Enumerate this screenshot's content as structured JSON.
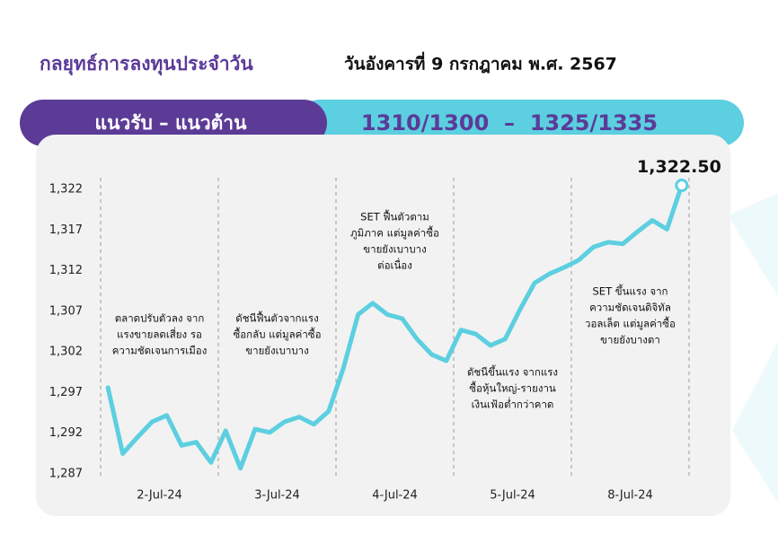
{
  "header": {
    "title": "กลยุทธ์การลงทุนประจำวัน",
    "date": "วันอังคารที่ 9 กรกฎาคม พ.ศ. 2567"
  },
  "range_bar": {
    "label": "แนวรับ – แนวต้าน",
    "value": "1310/1300  –  1325/1335"
  },
  "chart_data": {
    "type": "line",
    "days": [
      "2-Jul-24",
      "3-Jul-24",
      "4-Jul-24",
      "5-Jul-24",
      "8-Jul-24"
    ],
    "values": [
      1297.6,
      1289.5,
      1291.5,
      1293.4,
      1294.2,
      1290.5,
      1290.9,
      1288.4,
      1292.3,
      1287.7,
      1292.5,
      1292.1,
      1293.4,
      1294.0,
      1293.1,
      1294.7,
      1300.0,
      1306.6,
      1308.0,
      1306.6,
      1306.1,
      1303.6,
      1301.7,
      1300.9,
      1304.7,
      1304.2,
      1302.8,
      1303.6,
      1307.2,
      1310.5,
      1311.6,
      1312.4,
      1313.3,
      1314.9,
      1315.5,
      1315.3,
      1316.8,
      1318.2,
      1317.1,
      1322.5
    ],
    "value_labels": [
      null,
      null,
      null,
      null,
      null,
      null,
      null,
      null,
      null,
      null,
      null,
      null,
      null,
      null,
      null,
      null,
      null,
      null,
      null,
      null,
      null,
      null,
      null,
      null,
      null,
      null,
      null,
      null,
      null,
      null,
      null,
      null,
      null,
      null,
      null,
      null,
      null,
      null,
      null,
      "1,322.50"
    ],
    "color": "#5ccfe0",
    "ylim": [
      1287,
      1323
    ],
    "yticks": [
      {
        "value": 1287,
        "label": "1,287"
      },
      {
        "value": 1292,
        "label": "1,292"
      },
      {
        "value": 1297,
        "label": "1,297"
      },
      {
        "value": 1302,
        "label": "1,302"
      },
      {
        "value": 1307,
        "label": "1,307"
      },
      {
        "value": 1312,
        "label": "1,312"
      },
      {
        "value": 1317,
        "label": "1,317"
      },
      {
        "value": 1322,
        "label": "1,322"
      }
    ],
    "annotations": [
      [
        "ตลาดปรับตัวลง จาก",
        "แรงขายลดเสี่ยง รอ",
        "ความชัดเจนการเมือง"
      ],
      [
        "ดัชนีฟื้นตัวจากแรง",
        "ซื้อกลับ แต่มูลค่าซื้อ",
        "ขายยังเบาบาง"
      ],
      [
        "SET ฟื้นตัวตาม",
        "ภูมิภาค แต่มูลค่าซื้อ",
        "ขายยังเบาบาง",
        "ต่อเนื่อง"
      ],
      [
        "ดัชนีขึ้นแรง จากแรง",
        "ซื้อหุ้นใหญ่-รายงาน",
        "เงินเฟ้อต่ำกว่าคาด"
      ],
      [
        "SET ขึ้นแรง จาก",
        "ความชัดเจนดิจิทัล",
        "วอลเล็ต แต่มูลค่าซื้อ",
        "ขายยังบางตา"
      ]
    ]
  }
}
